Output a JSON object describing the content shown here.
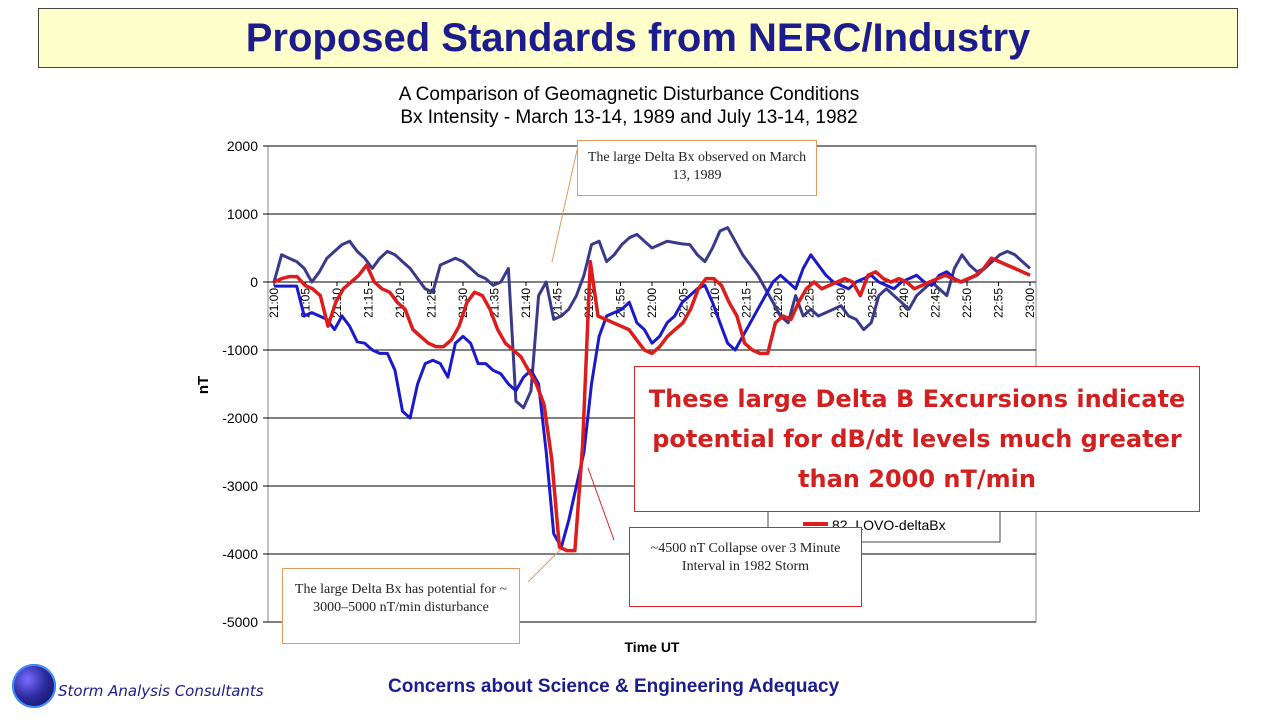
{
  "slide_title": "Proposed Standards from NERC/Industry",
  "footer": {
    "center_text": "Concerns about Science & Engineering Adequacy",
    "left_text": "Storm Analysis Consultants"
  },
  "colors": {
    "title_blue": "#1c1c8c",
    "series_89": "#3a3a8a",
    "series_82_hq": "#1a1acc",
    "series_82_lovo": "#dd1c1c",
    "callout_red": "#d21f1f"
  },
  "annotations": {
    "march13": "The large Delta Bx observed on March 13, 1989",
    "potential": "The large Delta Bx has potential for ~ 3000–5000 nT/min disturbance",
    "collapse": "~4500 nT Collapse over 3 Minute Interval in 1982 Storm",
    "big_callout": "These large Delta B Excursions indicate potential for dB/dt levels much greater than 2000 nT/min"
  },
  "chart_data": {
    "type": "line",
    "title": "A Comparison of Geomagnetic Disturbance Conditions",
    "subtitle": "Bx Intensity - March 13-14, 1989 and July 13-14, 1982",
    "xlabel": "Time UT",
    "ylabel": "nT",
    "ylim": [
      -5000,
      2000
    ],
    "yticks": [
      2000,
      1000,
      0,
      -1000,
      -2000,
      -3000,
      -4000,
      -5000
    ],
    "xtick_labels": [
      "21:00",
      "21:05",
      "21:10",
      "21:15",
      "21:20",
      "21:25",
      "21:30",
      "21:35",
      "21:40",
      "21:45",
      "21:50",
      "21:55",
      "22:00",
      "22:05",
      "22:10",
      "22:15",
      "22:20",
      "22:25",
      "22:30",
      "22:35",
      "22:40",
      "22:45",
      "22:50",
      "22:55",
      "23:00"
    ],
    "grid": "horizontal",
    "legend_visible": [
      "82_LOVO-deltaBx"
    ],
    "series": [
      {
        "name": "",
        "color": "#3a3a8a",
        "values": [
          0,
          400,
          350,
          300,
          200,
          0,
          150,
          350,
          450,
          550,
          600,
          450,
          350,
          200,
          350,
          450,
          400,
          300,
          200,
          50,
          -100,
          -150,
          250,
          300,
          350,
          300,
          200,
          100,
          50,
          -50,
          0,
          200,
          -1750,
          -1850,
          -1600,
          -200,
          0,
          -550,
          -500,
          -400,
          -200,
          100,
          550,
          600,
          300,
          400,
          550,
          650,
          700,
          600,
          500,
          550,
          600,
          580,
          560,
          550,
          400,
          300,
          500,
          750,
          800,
          600,
          400,
          250,
          100,
          -100,
          -300,
          -500,
          -600,
          -200,
          -500,
          -400,
          -500,
          -450,
          -400,
          -350,
          -500,
          -550,
          -700,
          -600,
          -200,
          -100,
          -200,
          -300,
          -400,
          -200,
          -100,
          0,
          -100,
          -200,
          200,
          400,
          250,
          150,
          200,
          300,
          400,
          450,
          400,
          300,
          200
        ]
      },
      {
        "name": "",
        "color": "#1a1acc",
        "values": [
          -60,
          -60,
          -60,
          -60,
          -500,
          -450,
          -500,
          -550,
          -700,
          -500,
          -650,
          -880,
          -900,
          -1000,
          -1050,
          -1050,
          -1300,
          -1900,
          -2000,
          -1500,
          -1200,
          -1150,
          -1200,
          -1400,
          -900,
          -800,
          -900,
          -1200,
          -1200,
          -1300,
          -1350,
          -1500,
          -1600,
          -1400,
          -1300,
          -1500,
          -2500,
          -3700,
          -3900,
          -3500,
          -3000,
          -2500,
          -1500,
          -800,
          -500,
          -450,
          -400,
          -300,
          -600,
          -700,
          -900,
          -800,
          -600,
          -500,
          -300,
          -200,
          -100,
          -50,
          -300,
          -600,
          -900,
          -1000,
          -800,
          -600,
          -400,
          -200,
          0,
          100,
          0,
          -100,
          200,
          400,
          250,
          100,
          0,
          -50,
          -100,
          0,
          50,
          100,
          0,
          -50,
          -100,
          0,
          50,
          100,
          0,
          -50,
          100,
          150,
          50,
          0,
          50,
          100,
          200,
          350,
          300,
          250,
          200,
          150,
          100
        ]
      },
      {
        "name": "82_LOVO-deltaBx",
        "color": "#dd1c1c",
        "values": [
          0,
          50,
          80,
          80,
          -50,
          -100,
          -200,
          -650,
          -300,
          -100,
          0,
          100,
          250,
          0,
          -100,
          -150,
          -300,
          -400,
          -700,
          -800,
          -900,
          -950,
          -950,
          -850,
          -650,
          -300,
          -150,
          -200,
          -400,
          -700,
          -900,
          -1000,
          -1100,
          -1300,
          -1500,
          -1800,
          -2600,
          -3900,
          -3950,
          -3950,
          -2400,
          300,
          -500,
          -550,
          -600,
          -650,
          -700,
          -850,
          -1000,
          -1050,
          -950,
          -800,
          -700,
          -600,
          -400,
          -100,
          50,
          50,
          -50,
          -300,
          -500,
          -900,
          -1000,
          -1050,
          -1050,
          -600,
          -500,
          -550,
          -300,
          -100,
          0,
          -100,
          -50,
          0,
          50,
          0,
          -200,
          100,
          150,
          50,
          0,
          50,
          0,
          -100,
          -50,
          0,
          50,
          100,
          50,
          0,
          50,
          100,
          200,
          350,
          300,
          250,
          200,
          150,
          100
        ]
      }
    ]
  }
}
